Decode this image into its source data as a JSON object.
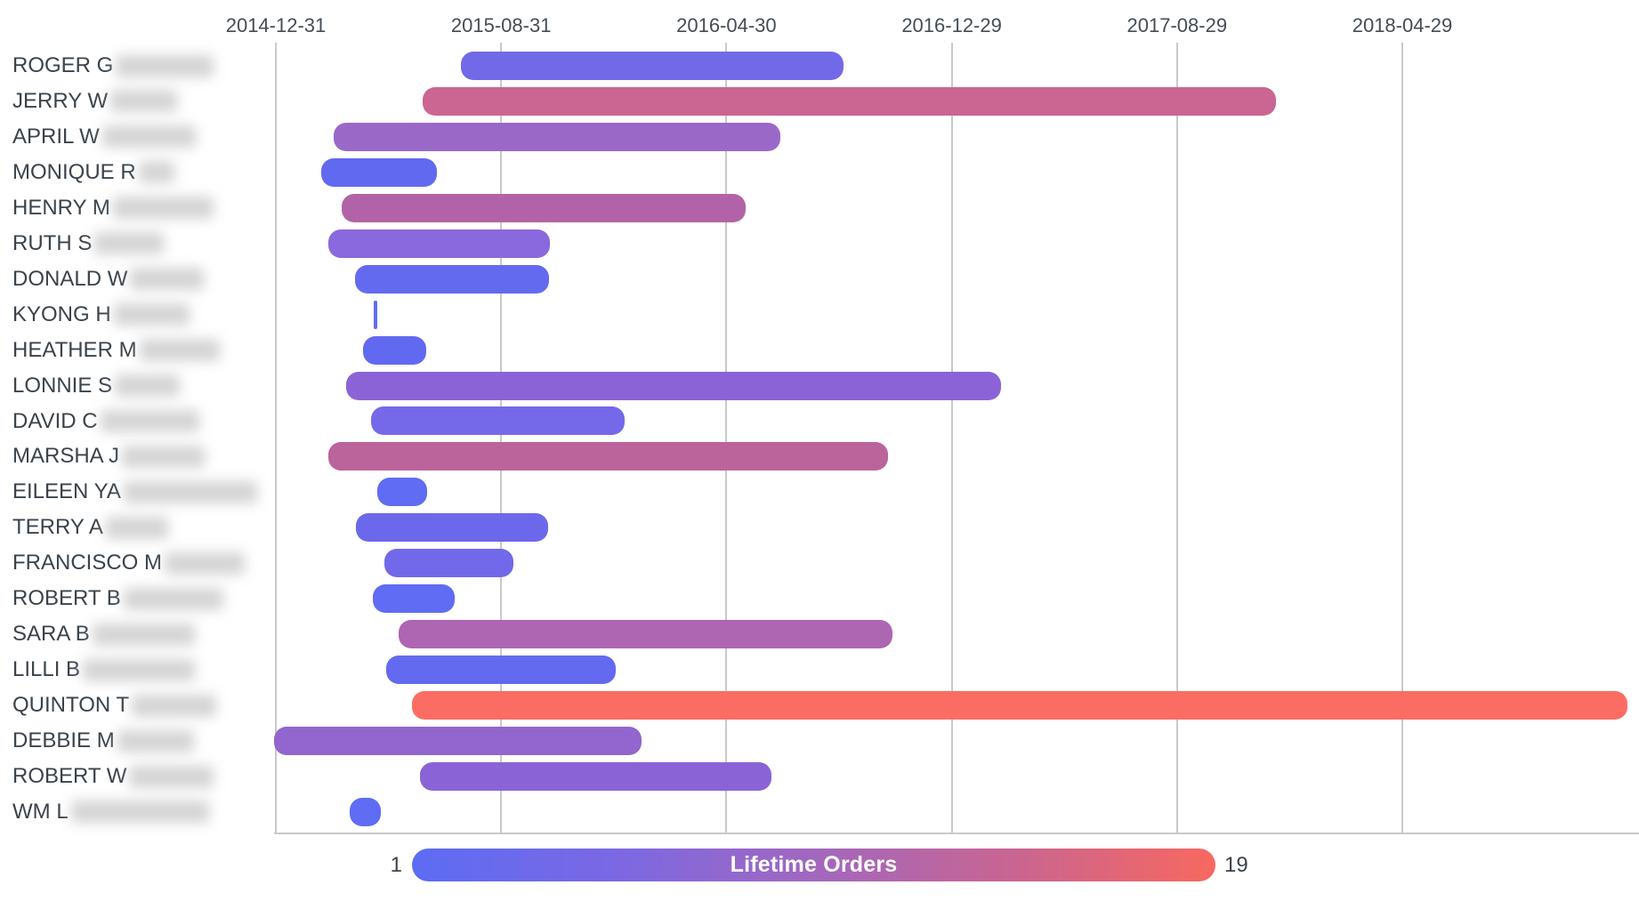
{
  "page": {
    "background": "#ffffff"
  },
  "colors": {
    "text": "#3b434b",
    "axis_text": "#454d54",
    "gridline": "#c9c9c9",
    "redaction": "#c6c6c6",
    "background": "#ffffff"
  },
  "legend": {
    "min_label": "1",
    "max_label": "19",
    "title": "Lifetime Orders",
    "gradient": [
      "#5c6cf4",
      "#7b68e4",
      "#a267be",
      "#c96591",
      "#f8685f"
    ]
  },
  "chart_data": {
    "type": "bar",
    "subtype": "gantt-timeline",
    "orientation": "horizontal",
    "title": "",
    "xlabel": "",
    "ylabel": "",
    "grid": true,
    "x_axis": {
      "position": "top",
      "tick_labels": [
        "2014-12-31",
        "2015-08-31",
        "2016-04-30",
        "2016-12-29",
        "2017-08-29",
        "2018-04-29"
      ],
      "tick_interval_days": 243,
      "range": [
        "2014-12-31",
        "2018-04-29"
      ]
    },
    "colorbar": {
      "title": "Lifetime Orders",
      "min": 1,
      "max": 19,
      "left_color": "#5c6cf4",
      "right_color": "#f8685f"
    },
    "rows": [
      {
        "label": "ROGER G",
        "redact_w": 110,
        "start": "2015-07-19",
        "end": "2016-09-03",
        "color": "#7269e8",
        "orders_est": 3
      },
      {
        "label": "JERRY W",
        "redact_w": 75,
        "start": "2015-06-07",
        "end": "2017-12-14",
        "color": "#cb6591",
        "orders_est": 13
      },
      {
        "label": "APRIL W",
        "redact_w": 105,
        "start": "2015-03-03",
        "end": "2016-06-27",
        "color": "#9a69c8",
        "orders_est": 8
      },
      {
        "label": "MONIQUE R",
        "redact_w": 40,
        "start": "2015-02-18",
        "end": "2015-06-23",
        "color": "#6169f0",
        "orders_est": 1
      },
      {
        "label": "HENRY M",
        "redact_w": 113,
        "start": "2015-03-12",
        "end": "2016-05-21",
        "color": "#b263a8",
        "orders_est": 11
      },
      {
        "label": "RUTH S",
        "redact_w": 78,
        "start": "2015-02-26",
        "end": "2015-10-23",
        "color": "#8a68dd",
        "orders_est": 6
      },
      {
        "label": "DONALD W",
        "redact_w": 83,
        "start": "2015-03-26",
        "end": "2015-10-22",
        "color": "#646af0",
        "orders_est": 2
      },
      {
        "label": "KYONG H",
        "redact_w": 85,
        "start": "2015-04-16",
        "end": "2015-04-18",
        "color": "#5f6cf3",
        "orders_est": 1
      },
      {
        "label": "HEATHER M",
        "redact_w": 90,
        "start": "2015-04-04",
        "end": "2015-06-11",
        "color": "#6269f1",
        "orders_est": 1
      },
      {
        "label": "LONNIE S",
        "redact_w": 73,
        "start": "2015-03-17",
        "end": "2017-02-20",
        "color": "#8c63d6",
        "orders_est": 6
      },
      {
        "label": "DAVID C",
        "redact_w": 111,
        "start": "2015-04-13",
        "end": "2016-01-11",
        "color": "#7569ea",
        "orders_est": 4
      },
      {
        "label": "MARSHA J",
        "redact_w": 93,
        "start": "2015-02-26",
        "end": "2016-10-21",
        "color": "#bb639b",
        "orders_est": 12
      },
      {
        "label": "EILEEN YA",
        "redact_w": 150,
        "start": "2015-04-19",
        "end": "2015-06-12",
        "color": "#5f6cf3",
        "orders_est": 1
      },
      {
        "label": "TERRY A",
        "redact_w": 70,
        "start": "2015-03-27",
        "end": "2015-10-21",
        "color": "#6b68ec",
        "orders_est": 2
      },
      {
        "label": "FRANCISCO M",
        "redact_w": 90,
        "start": "2015-04-27",
        "end": "2015-09-13",
        "color": "#7169e9",
        "orders_est": 3
      },
      {
        "label": "ROBERT B",
        "redact_w": 112,
        "start": "2015-04-15",
        "end": "2015-07-12",
        "color": "#5f6cf3",
        "orders_est": 1
      },
      {
        "label": "SARA B",
        "redact_w": 115,
        "start": "2015-05-12",
        "end": "2016-10-26",
        "color": "#ae65b2",
        "orders_est": 10
      },
      {
        "label": "LILLI B",
        "redact_w": 126,
        "start": "2015-04-29",
        "end": "2016-01-02",
        "color": "#636af0",
        "orders_est": 2
      },
      {
        "label": "QUINTON T",
        "redact_w": 95,
        "start": "2015-05-27",
        "end": "2018-12-28",
        "color": "#fb6d62",
        "orders_est": 19
      },
      {
        "label": "DEBBIE M",
        "redact_w": 86,
        "start": "2014-12-29",
        "end": "2016-01-29",
        "color": "#9265cf",
        "orders_est": 7
      },
      {
        "label": "ROBERT W",
        "redact_w": 95,
        "start": "2015-06-04",
        "end": "2016-06-18",
        "color": "#8a64d6",
        "orders_est": 6
      },
      {
        "label": "WM L",
        "redact_w": 155,
        "start": "2015-03-21",
        "end": "2015-04-23",
        "color": "#5f6cf3",
        "orders_est": 1
      }
    ]
  }
}
